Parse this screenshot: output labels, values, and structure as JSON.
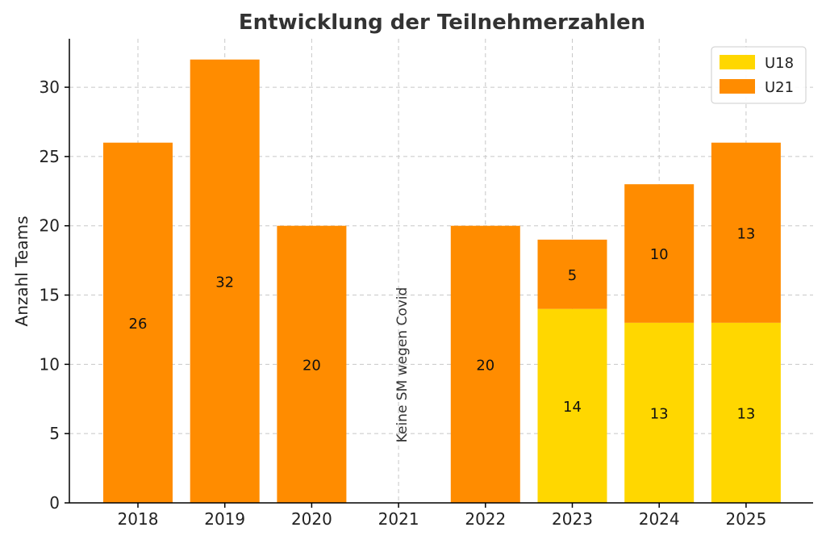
{
  "chart_data": {
    "type": "bar",
    "stacked": true,
    "title": "Entwicklung der Teilnehmerzahlen",
    "xlabel": "",
    "ylabel": "Anzahl Teams",
    "categories": [
      "2018",
      "2019",
      "2020",
      "2021",
      "2022",
      "2023",
      "2024",
      "2025"
    ],
    "ylim": [
      0,
      33.5
    ],
    "yticks": [
      0,
      5,
      10,
      15,
      20,
      25,
      30
    ],
    "grid": true,
    "legend_position": "top-right",
    "series": [
      {
        "name": "U18",
        "color": "#FFD700",
        "values": [
          0,
          0,
          0,
          0,
          0,
          14,
          13,
          13
        ]
      },
      {
        "name": "U21",
        "color": "#FF8C00",
        "values": [
          26,
          32,
          20,
          0,
          20,
          5,
          10,
          13
        ]
      }
    ],
    "annotations": [
      {
        "category": "2021",
        "text": "Keine SM wegen Covid",
        "rotation": 90
      }
    ]
  }
}
